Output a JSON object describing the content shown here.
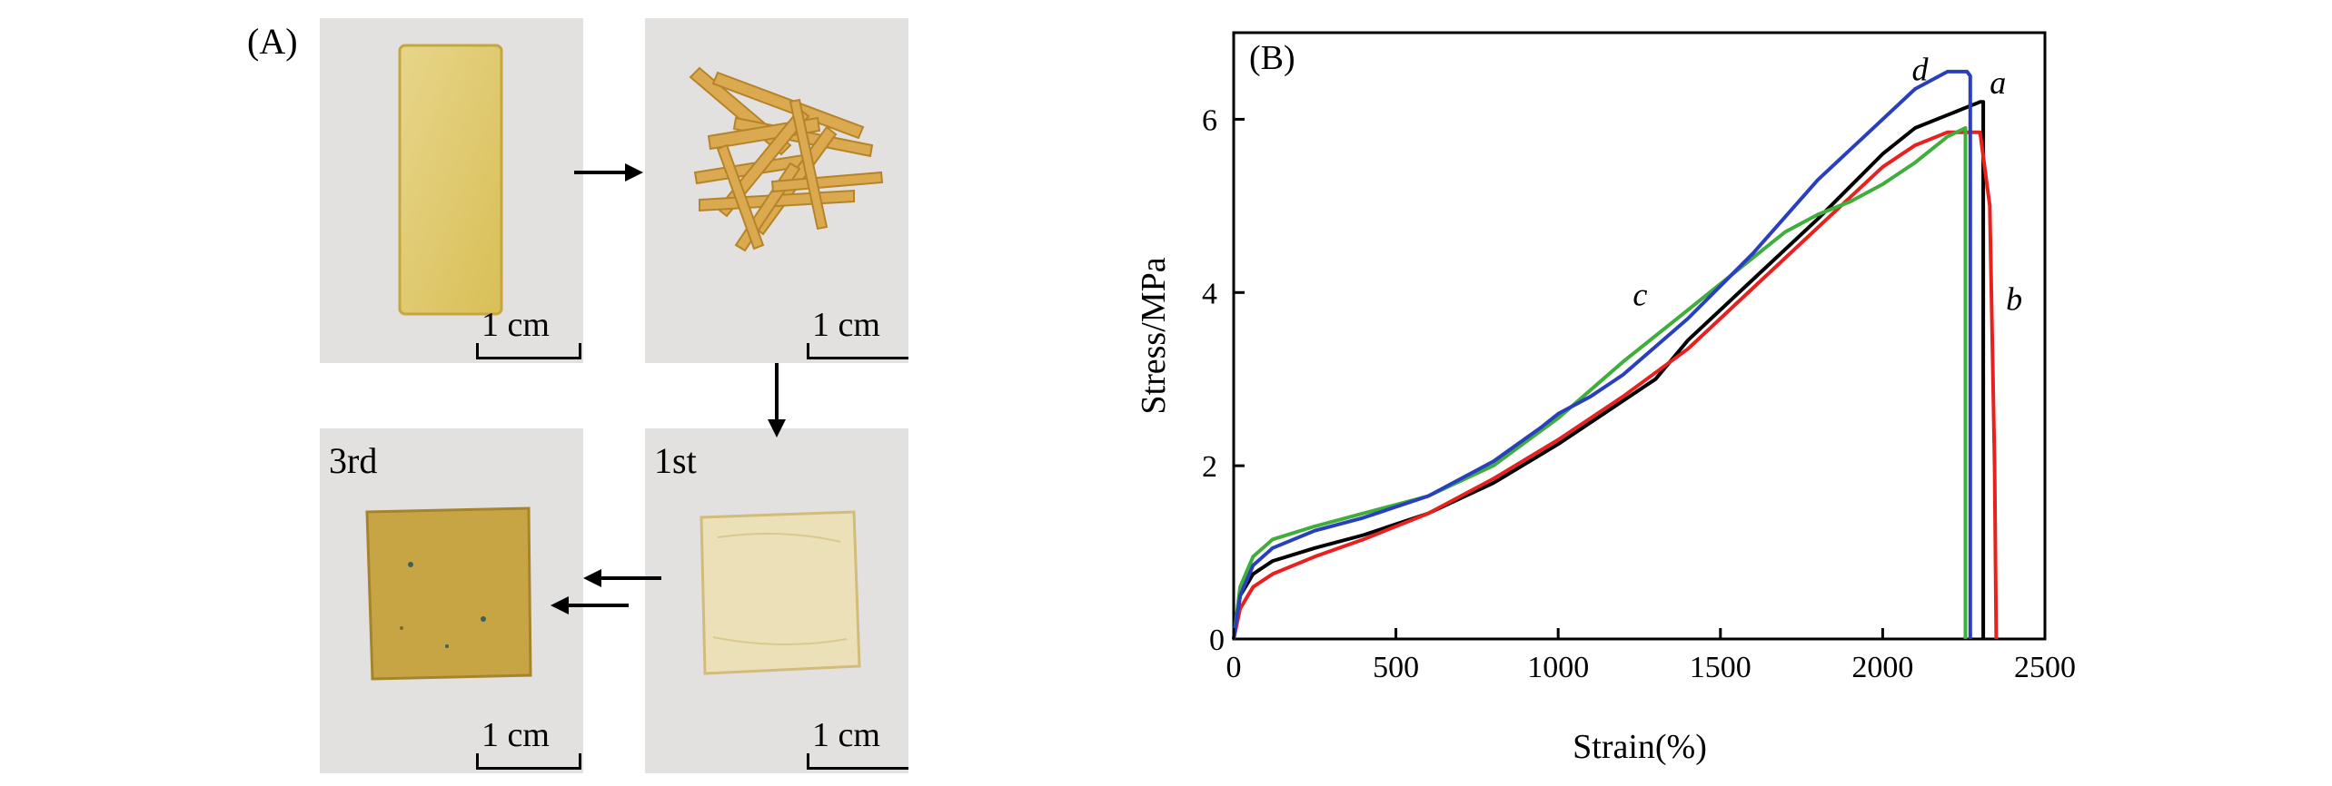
{
  "panel_a": {
    "label": "(A)",
    "photos": [
      {
        "name": "original-strip",
        "scale": "1 cm",
        "tag": ""
      },
      {
        "name": "cut-pieces",
        "scale": "1 cm",
        "tag": ""
      },
      {
        "name": "first-recycled",
        "scale": "1 cm",
        "tag": "1st"
      },
      {
        "name": "third-recycled",
        "scale": "1 cm",
        "tag": "3rd"
      }
    ]
  },
  "panel_b": {
    "label": "(B)"
  },
  "colors": {
    "a": "#000000",
    "b": "#e8211f",
    "c": "#3fae3a",
    "d": "#2a3fbd"
  },
  "chart_data": {
    "type": "line",
    "xlabel": "Strain(%)",
    "ylabel": "Stress/MPa",
    "xlim": [
      0,
      2500
    ],
    "ylim": [
      0,
      7
    ],
    "xticks": [
      0,
      500,
      1000,
      1500,
      2000,
      2500
    ],
    "yticks": [
      2,
      4,
      6
    ],
    "series": [
      {
        "name": "a",
        "x": [
          0,
          20,
          60,
          120,
          250,
          400,
          600,
          800,
          1000,
          1200,
          1300,
          1400,
          1600,
          1800,
          2000,
          2100,
          2200,
          2300,
          2310,
          2310
        ],
        "y": [
          0,
          0.5,
          0.75,
          0.9,
          1.05,
          1.2,
          1.45,
          1.8,
          2.25,
          2.75,
          3.0,
          3.45,
          4.15,
          4.85,
          5.6,
          5.9,
          6.05,
          6.2,
          6.2,
          0
        ]
      },
      {
        "name": "b",
        "x": [
          0,
          20,
          60,
          120,
          250,
          400,
          600,
          800,
          1000,
          1200,
          1400,
          1600,
          1800,
          2000,
          2100,
          2200,
          2250,
          2300,
          2330,
          2345,
          2350
        ],
        "y": [
          0,
          0.35,
          0.6,
          0.75,
          0.95,
          1.15,
          1.45,
          1.85,
          2.3,
          2.8,
          3.35,
          4.05,
          4.75,
          5.45,
          5.7,
          5.85,
          5.85,
          5.85,
          5.0,
          2.0,
          0
        ]
      },
      {
        "name": "c",
        "x": [
          0,
          20,
          60,
          120,
          250,
          400,
          600,
          800,
          1000,
          1200,
          1400,
          1600,
          1700,
          1800,
          1900,
          2000,
          2100,
          2200,
          2255,
          2255
        ],
        "y": [
          0,
          0.6,
          0.95,
          1.15,
          1.3,
          1.45,
          1.65,
          2.0,
          2.55,
          3.2,
          3.8,
          4.4,
          4.7,
          4.9,
          5.05,
          5.25,
          5.5,
          5.8,
          5.9,
          0
        ]
      },
      {
        "name": "d",
        "x": [
          0,
          20,
          60,
          120,
          250,
          400,
          600,
          800,
          950,
          1000,
          1100,
          1200,
          1400,
          1600,
          1800,
          2000,
          2100,
          2200,
          2260,
          2270,
          2270
        ],
        "y": [
          0,
          0.5,
          0.85,
          1.05,
          1.25,
          1.4,
          1.65,
          2.05,
          2.45,
          2.6,
          2.8,
          3.05,
          3.7,
          4.45,
          5.3,
          6.0,
          6.35,
          6.55,
          6.55,
          6.5,
          0
        ]
      }
    ],
    "annotations": [
      {
        "text": "a",
        "x": 2330,
        "y": 6.3
      },
      {
        "text": "b",
        "x": 2380,
        "y": 3.8
      },
      {
        "text": "c",
        "x": 1230,
        "y": 3.85
      },
      {
        "text": "d",
        "x": 2090,
        "y": 6.45
      }
    ]
  }
}
